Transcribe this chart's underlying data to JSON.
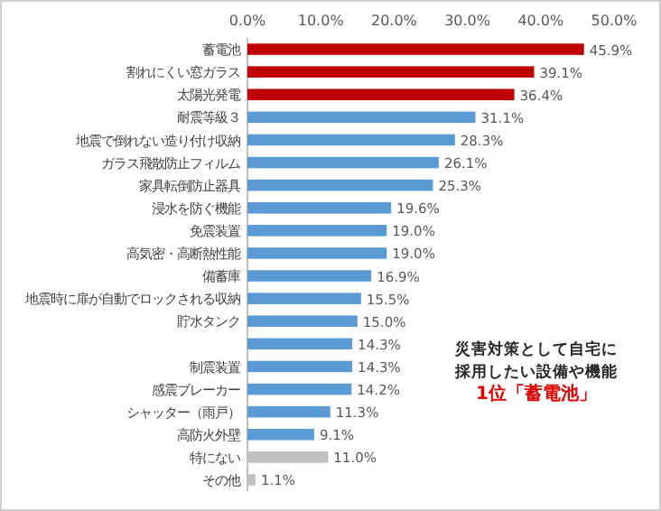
{
  "chart_data": {
    "type": "bar",
    "orientation": "horizontal",
    "categories": [
      "蓄電池",
      "割れにくい窓ガラス",
      "太陽光発電",
      "耐震等級３",
      "地震で倒れない造り付け収納",
      "ガラス飛散防止フィルム",
      "家具転倒防止器具",
      "浸水を防ぐ機能",
      "免震装置",
      "高気密・高断熱性能",
      "備蓄庫",
      "地震時に扉が自動でロックされる収納",
      "貯水タンク",
      null,
      "制震装置",
      "感震ブレーカー",
      "シャッター（雨戸）",
      "高防火外壁",
      "特にない",
      "その他"
    ],
    "values": [
      45.9,
      39.1,
      36.4,
      31.1,
      28.3,
      26.1,
      25.3,
      19.6,
      19.0,
      19.0,
      16.9,
      15.5,
      15.0,
      14.3,
      14.3,
      14.2,
      11.3,
      9.1,
      11.0,
      1.1
    ],
    "colors": [
      "#c00000",
      "#c00000",
      "#c00000",
      "#5b9bd5",
      "#5b9bd5",
      "#5b9bd5",
      "#5b9bd5",
      "#5b9bd5",
      "#5b9bd5",
      "#5b9bd5",
      "#5b9bd5",
      "#5b9bd5",
      "#5b9bd5",
      "#5b9bd5",
      "#5b9bd5",
      "#5b9bd5",
      "#5b9bd5",
      "#5b9bd5",
      "#bfbfbf",
      "#bfbfbf"
    ],
    "value_labels": [
      "45.9%",
      "39.1%",
      "36.4%",
      "31.1%",
      "28.3%",
      "26.1%",
      "25.3%",
      "19.6%",
      "19.0%",
      "19.0%",
      "16.9%",
      "15.5%",
      "15.0%",
      "14.3%",
      "14.3%",
      "14.2%",
      "11.3%",
      "9.1%",
      "11.0%",
      "1.1%"
    ],
    "xlim": [
      0,
      50
    ],
    "xticks": [
      {
        "value": 0,
        "label": "0.0%"
      },
      {
        "value": 10,
        "label": "10.0%"
      },
      {
        "value": 20,
        "label": "20.0%"
      },
      {
        "value": 30,
        "label": "30.0%"
      },
      {
        "value": 40,
        "label": "40.0%"
      },
      {
        "value": 50,
        "label": "50.0%"
      }
    ],
    "grid": false,
    "annotations": [
      "災害対策として自宅に",
      "採用したい設備や機能",
      "1位「蓄電池」"
    ]
  }
}
